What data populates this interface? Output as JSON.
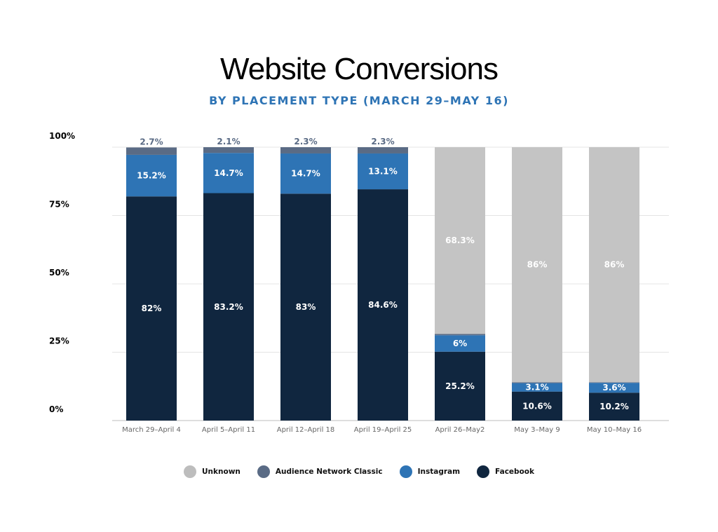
{
  "chart_data": {
    "type": "bar",
    "stacked": true,
    "title": "Website Conversions",
    "subtitle": "BY PLACEMENT TYPE (MARCH 29–MAY 16)",
    "xlabel": "",
    "ylabel": "",
    "ylim": [
      0,
      100
    ],
    "yticks": [
      "0%",
      "25%",
      "50%",
      "75%",
      "100%"
    ],
    "ytick_values": [
      0,
      25,
      50,
      75,
      100
    ],
    "grid": true,
    "legend_position": "bottom",
    "categories": [
      "March 29–April 4",
      "April 5–April 11",
      "April 12–April 18",
      "April 19–April 25",
      "April 26–May2",
      "May 3–May 9",
      "May 10–May 16"
    ],
    "series": [
      {
        "name": "Facebook",
        "color": "#10263f",
        "label_color": "#ffffff",
        "values": [
          82,
          83.2,
          83,
          84.6,
          25.2,
          10.6,
          10.2
        ],
        "labels": [
          "82%",
          "83.2%",
          "83%",
          "84.6%",
          "25.2%",
          "10.6%",
          "10.2%"
        ]
      },
      {
        "name": "Instagram",
        "color": "#2e74b5",
        "label_color": "#ffffff",
        "values": [
          15.2,
          14.7,
          14.7,
          13.1,
          6,
          3.1,
          3.6
        ],
        "labels": [
          "15.2%",
          "14.7%",
          "14.7%",
          "13.1%",
          "6%",
          "3.1%",
          "3.6%"
        ]
      },
      {
        "name": "Audience Network Classic",
        "color": "#5a6b85",
        "label_color": "#5a6b85",
        "values": [
          2.7,
          2.1,
          2.3,
          2.3,
          0.5,
          0.3,
          0.2
        ],
        "labels": [
          "2.7%",
          "2.1%",
          "2.3%",
          "2.3%",
          "",
          "",
          ""
        ]
      },
      {
        "name": "Unknown",
        "color": "#c4c4c4",
        "label_color": "#ffffff",
        "values": [
          0,
          0,
          0,
          0,
          68.3,
          86,
          86
        ],
        "labels": [
          "",
          "",
          "",
          "",
          "68.3%",
          "86%",
          "86%"
        ]
      }
    ],
    "legend_order": [
      "Unknown",
      "Audience Network Classic",
      "Instagram",
      "Facebook"
    ]
  }
}
